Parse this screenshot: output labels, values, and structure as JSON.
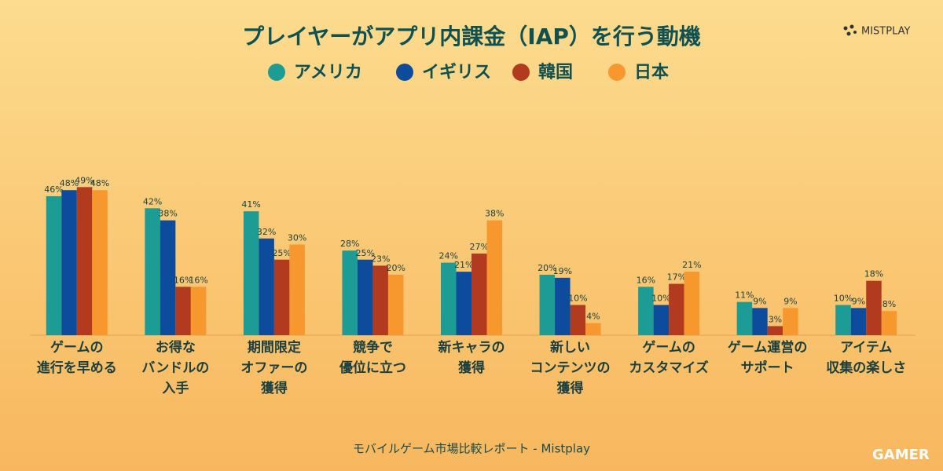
{
  "chart_data": {
    "type": "bar",
    "title": "プレイヤーがアプリ内課金（IAP）を行う動機",
    "categories": [
      [
        "ゲームの",
        "進行を早める"
      ],
      [
        "お得な",
        "バンドルの",
        "入手"
      ],
      [
        "期間限定",
        "オファーの",
        "獲得"
      ],
      [
        "競争で",
        "優位に立つ"
      ],
      [
        "新キャラの",
        "獲得"
      ],
      [
        "新しい",
        "コンテンツの",
        "獲得"
      ],
      [
        "ゲームの",
        "カスタマイズ"
      ],
      [
        "ゲーム運営の",
        "サポート"
      ],
      [
        "アイテム",
        "収集の楽しさ"
      ]
    ],
    "series": [
      {
        "name": "アメリカ",
        "color": "#1c9c94",
        "values": [
          46,
          42,
          41,
          28,
          24,
          20,
          16,
          11,
          10
        ],
        "value_labels": [
          "46%",
          "42%",
          "41%",
          "28%",
          "24%",
          "20%",
          "16%",
          "11%",
          "10%"
        ]
      },
      {
        "name": "イギリス",
        "color": "#0d4c9c",
        "values": [
          48,
          38,
          32,
          25,
          21,
          19,
          10,
          9,
          9
        ],
        "value_labels": [
          "48%",
          "38%",
          "32%",
          "25%",
          "21%",
          "19%",
          "10%",
          "9%",
          "9%"
        ]
      },
      {
        "name": "韓国",
        "color": "#b13a1f",
        "values": [
          49,
          16,
          25,
          23,
          27,
          10,
          17,
          3,
          18
        ],
        "value_labels": [
          "49%",
          "16%",
          "25%",
          "23%",
          "27%",
          "10%",
          "17%",
          "3%",
          "18%"
        ]
      },
      {
        "name": "日本",
        "color": "#f7982f",
        "values": [
          48,
          16,
          30,
          20,
          38,
          4,
          21,
          9,
          8
        ],
        "value_labels": [
          "48%",
          "16%",
          "30%",
          "20%",
          "38%",
          "4%",
          "21%",
          "9%",
          "8%"
        ]
      }
    ],
    "ylim": [
      0,
      50
    ],
    "footer": "モバイルゲーム市場比較レポート - Mistplay",
    "logo": "MISTPLAY",
    "watermark": "GAMER"
  }
}
